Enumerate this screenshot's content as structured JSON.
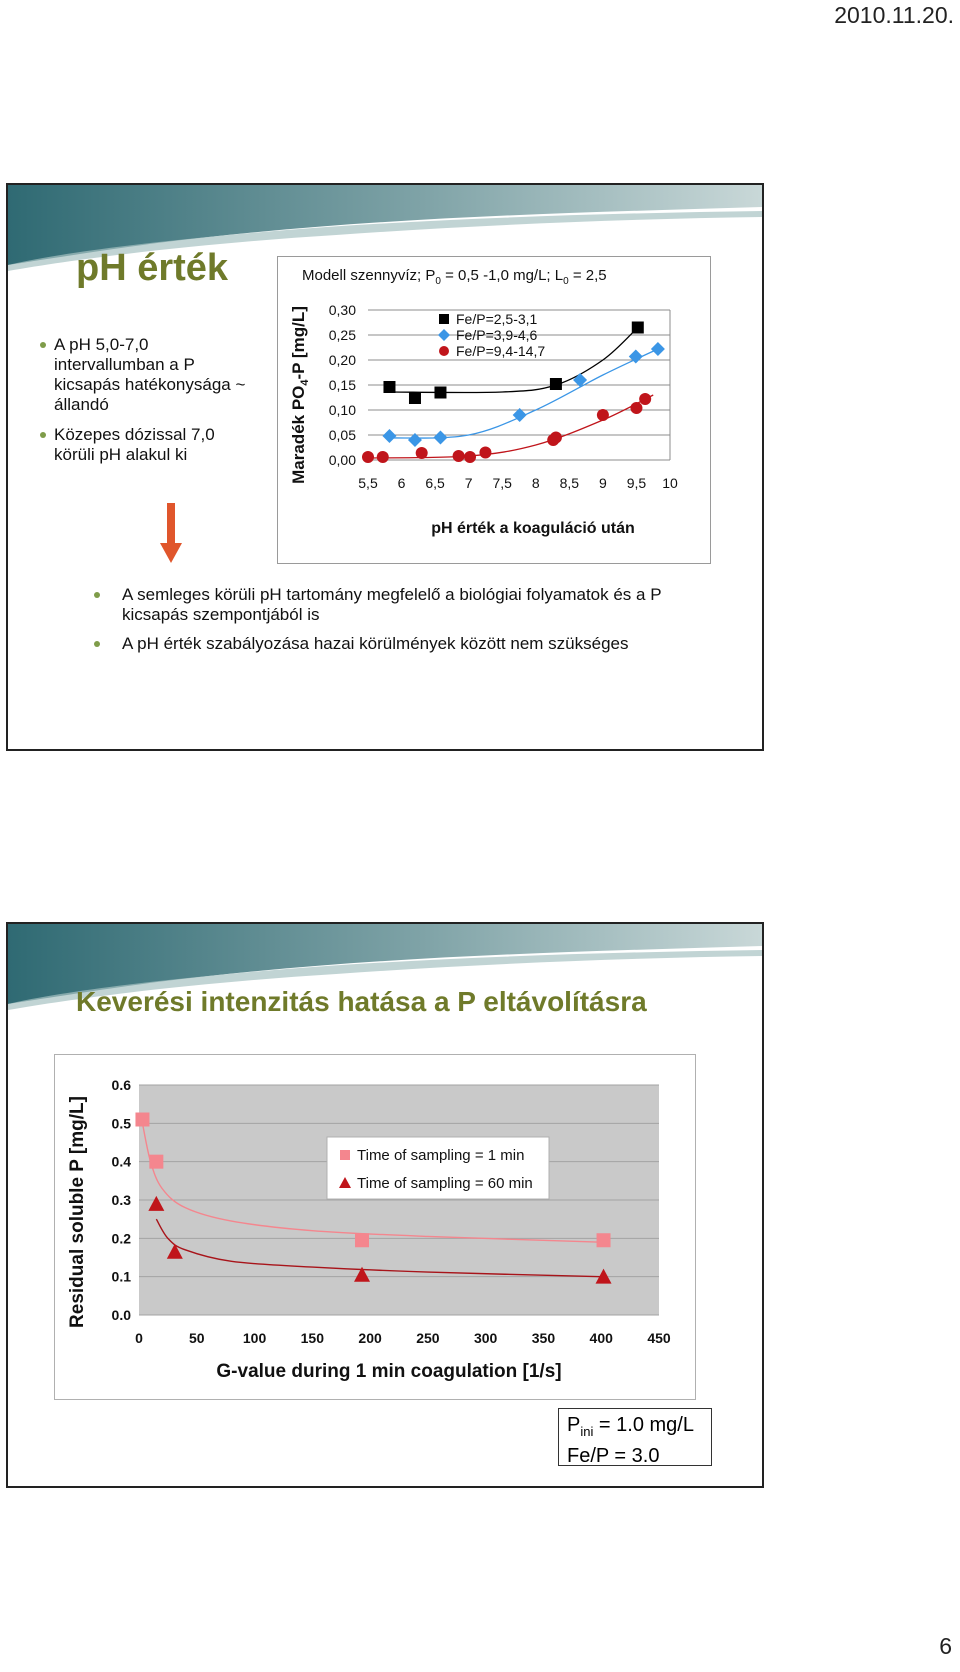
{
  "header": {
    "date": "2010.11.20."
  },
  "footer": {
    "page_number": "6"
  },
  "slide1": {
    "title": "pH érték",
    "bullets": [
      "A pH 5,0-7,0 intervallumban a P kicsapás hatékonysága ~ állandó",
      "Közepes dózissal 7,0 körüli pH alakul ki"
    ],
    "notes": [
      "A semleges körüli pH tartomány megfelelő a biológiai folyamatok és a P kicsapás szempontjából is",
      "A pH érték szabályozása hazai körülmények között nem szükséges"
    ],
    "chart_caption": {
      "prefix": "Modell szennyvíz; P",
      "sub1": "0",
      "mid": " = 0,5 -1,0 mg/L; L",
      "sub2": "0",
      "suffix": " = 2,5"
    },
    "colors": {
      "title": "#6f7a2a",
      "arrow": "#e0562c",
      "bullet": "#7f9c49"
    }
  },
  "slide2": {
    "title": "Keverési intenzitás hatása a P eltávolításra",
    "info": {
      "p_prefix": "P",
      "p_sub": "ini",
      "p_suffix": " = 1.0 mg/L",
      "fe_line": "Fe/P = 3.0"
    }
  },
  "chart_data": [
    {
      "type": "scatter",
      "xlabel": "pH érték a koaguláció után",
      "ylabel": "Maradék PO4-P [mg/L]",
      "ylabel_parts": {
        "pre": "Maradék PO",
        "sub": "4",
        "post": "-P [mg/L]"
      },
      "xlim": [
        5.5,
        10
      ],
      "ylim": [
        0,
        0.3
      ],
      "x_ticks": [
        5.5,
        6,
        6.5,
        7,
        7.5,
        8,
        8.5,
        9,
        9.5,
        10
      ],
      "x_tick_labels": [
        "5,5",
        "6",
        "6,5",
        "7",
        "7,5",
        "8",
        "8,5",
        "9",
        "9,5",
        "10"
      ],
      "y_ticks": [
        0,
        0.05,
        0.1,
        0.15,
        0.2,
        0.25,
        0.3
      ],
      "y_tick_labels": [
        "0,00",
        "0,05",
        "0,10",
        "0,15",
        "0,20",
        "0,25",
        "0,30"
      ],
      "legend_position": "top",
      "series": [
        {
          "name": "Fe/P=2,5-3,1",
          "marker": "square",
          "color": "#000000",
          "line_color": "#000000",
          "points": [
            [
              5.82,
              0.146
            ],
            [
              6.2,
              0.124
            ],
            [
              6.58,
              0.135
            ],
            [
              8.3,
              0.152
            ],
            [
              9.52,
              0.265
            ]
          ],
          "trend": [
            [
              5.82,
              0.136
            ],
            [
              7.5,
              0.136
            ],
            [
              8.3,
              0.15
            ],
            [
              9.0,
              0.2
            ],
            [
              9.52,
              0.265
            ]
          ]
        },
        {
          "name": "Fe/P=3,9-4,6",
          "marker": "diamond",
          "color": "#3b96e6",
          "line_color": "#3b96e6",
          "points": [
            [
              5.82,
              0.048
            ],
            [
              6.2,
              0.04
            ],
            [
              6.58,
              0.045
            ],
            [
              7.76,
              0.09
            ],
            [
              8.66,
              0.16
            ],
            [
              9.49,
              0.207
            ],
            [
              9.82,
              0.222
            ]
          ],
          "trend": [
            [
              5.82,
              0.044
            ],
            [
              7.0,
              0.05
            ],
            [
              8.0,
              0.1
            ],
            [
              9.0,
              0.17
            ],
            [
              9.82,
              0.222
            ]
          ]
        },
        {
          "name": "Fe/P=9,4-14,7",
          "marker": "circle",
          "color": "#c0151b",
          "line_color": "#c0151b",
          "points": [
            [
              5.5,
              0.006
            ],
            [
              5.72,
              0.006
            ],
            [
              6.3,
              0.014
            ],
            [
              6.85,
              0.008
            ],
            [
              7.02,
              0.006
            ],
            [
              7.25,
              0.015
            ],
            [
              8.26,
              0.04
            ],
            [
              8.3,
              0.045
            ],
            [
              9.0,
              0.09
            ],
            [
              9.5,
              0.104
            ],
            [
              9.63,
              0.122
            ]
          ],
          "trend": [
            [
              5.5,
              0.004
            ],
            [
              7.0,
              0.008
            ],
            [
              8.0,
              0.03
            ],
            [
              9.0,
              0.08
            ],
            [
              9.75,
              0.13
            ]
          ]
        }
      ]
    },
    {
      "type": "scatter",
      "xlabel": "G-value during 1 min coagulation [1/s]",
      "ylabel": "Residual soluble P [mg/L]",
      "xlim": [
        0,
        450
      ],
      "ylim": [
        0,
        0.6
      ],
      "x_ticks": [
        0,
        50,
        100,
        150,
        200,
        250,
        300,
        350,
        400,
        450
      ],
      "x_tick_labels": [
        "0",
        "50",
        "100",
        "150",
        "200",
        "250",
        "300",
        "350",
        "400",
        "450"
      ],
      "y_ticks": [
        0,
        0.1,
        0.2,
        0.3,
        0.4,
        0.5,
        0.6
      ],
      "y_tick_labels": [
        "0.0",
        "0.1",
        "0.2",
        "0.3",
        "0.4",
        "0.5",
        "0.6"
      ],
      "legend_position": "top-right",
      "series": [
        {
          "name": "Time of sampling = 1 min",
          "marker": "square",
          "color": "#f4868e",
          "line_color": "#f4868e",
          "points": [
            [
              3,
              0.51
            ],
            [
              15,
              0.4
            ],
            [
              193,
              0.195
            ],
            [
              402,
              0.195
            ]
          ],
          "trend": [
            [
              3,
              0.5
            ],
            [
              10,
              0.4
            ],
            [
              20,
              0.33
            ],
            [
              40,
              0.28
            ],
            [
              80,
              0.245
            ],
            [
              150,
              0.22
            ],
            [
              250,
              0.205
            ],
            [
              400,
              0.19
            ]
          ]
        },
        {
          "name": "Time of sampling = 60 min",
          "marker": "triangle",
          "color": "#c0151b",
          "line_color": "#a8141a",
          "points": [
            [
              15,
              0.29
            ],
            [
              31,
              0.165
            ],
            [
              193,
              0.105
            ],
            [
              402,
              0.1
            ]
          ],
          "trend": [
            [
              15,
              0.25
            ],
            [
              25,
              0.2
            ],
            [
              40,
              0.17
            ],
            [
              80,
              0.14
            ],
            [
              150,
              0.125
            ],
            [
              250,
              0.112
            ],
            [
              400,
              0.1
            ]
          ]
        }
      ]
    }
  ]
}
